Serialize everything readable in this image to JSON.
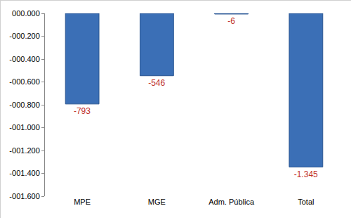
{
  "chart_data": {
    "type": "bar",
    "categories": [
      "MPE",
      "MGE",
      "Adm. Pública",
      "Total"
    ],
    "values": [
      -793,
      -546,
      -6,
      -1345
    ],
    "value_labels": [
      "-793",
      "-546",
      "-6",
      "-1.345"
    ],
    "data_labels": true,
    "color": "#3b6fb6",
    "ylim": [
      -1600,
      0
    ],
    "yticks": [
      {
        "value": 0,
        "label": "000.000"
      },
      {
        "value": -200,
        "label": "-000.200"
      },
      {
        "value": -400,
        "label": "-000.400"
      },
      {
        "value": -600,
        "label": "-000.600"
      },
      {
        "value": -800,
        "label": "-000.800"
      },
      {
        "value": -1000,
        "label": "-001.000"
      },
      {
        "value": -1200,
        "label": "-001.200"
      },
      {
        "value": -1400,
        "label": "-001.400"
      },
      {
        "value": -1600,
        "label": "-001.600"
      }
    ],
    "grid": false
  }
}
